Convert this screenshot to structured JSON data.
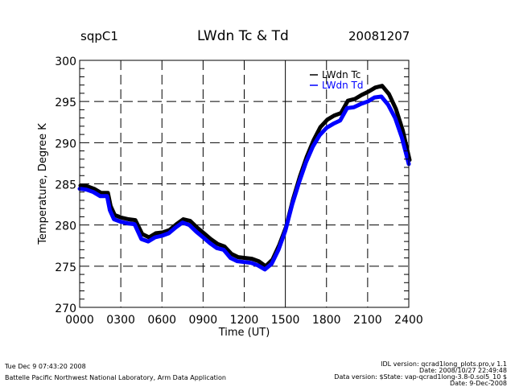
{
  "header": {
    "site": "sqpC1",
    "title": "LWdn Tc & Td",
    "date": "20081207"
  },
  "footer": {
    "left_line1": "Tue Dec  9 07:43:20 2008",
    "left_line2": "Battelle Pacific Northwest National Laboratory, Arm Data Application",
    "right_line1": "IDL version: qcrad1long_plots.pro,v 1.1",
    "right_line2": "Date: 2008/10/27 22:49:48",
    "right_line3": "Data version: $State: vap-qcrad1long-3.8-0.sol5_10 $",
    "right_line4": "Date: 9-Dec-2008"
  },
  "chart_data": {
    "type": "line",
    "title": "LWdn Tc & Td",
    "xlabel": "Time (UT)",
    "ylabel": "Temperature, Degree K",
    "xlim": [
      0,
      24
    ],
    "ylim": [
      270,
      300
    ],
    "xticks": [
      0,
      3,
      6,
      9,
      12,
      15,
      18,
      21,
      24
    ],
    "xtick_labels": [
      "0000",
      "0300",
      "0600",
      "0900",
      "1200",
      "1500",
      "1800",
      "2100",
      "2400"
    ],
    "yticks": [
      270,
      275,
      280,
      285,
      290,
      295,
      300
    ],
    "ytick_labels": [
      "270",
      "275",
      "280",
      "285",
      "290",
      "295",
      "300"
    ],
    "grid": true,
    "legend": "top-right",
    "x": [
      0,
      0.5,
      1,
      1.5,
      2,
      2.2,
      2.5,
      3,
      3.5,
      4,
      4.5,
      5,
      5.5,
      6,
      6.5,
      7,
      7.5,
      8,
      8.5,
      9,
      9.5,
      10,
      10.5,
      11,
      11.5,
      12,
      12.5,
      13,
      13.5,
      14,
      14.5,
      15,
      15.5,
      16,
      16.5,
      17,
      17.5,
      18,
      18.5,
      19,
      19.5,
      20,
      20.5,
      21,
      21.5,
      22,
      22.5,
      23,
      23.5,
      24
    ],
    "series": [
      {
        "name": "LWdn Tc",
        "color": "#000000",
        "values": [
          284.7,
          284.6,
          284.3,
          283.8,
          283.8,
          282.2,
          281.1,
          280.8,
          280.6,
          280.5,
          278.8,
          278.4,
          278.9,
          279.0,
          279.3,
          280.0,
          280.6,
          280.4,
          279.6,
          278.9,
          278.2,
          277.6,
          277.3,
          276.4,
          276.0,
          275.9,
          275.8,
          275.5,
          274.9,
          275.7,
          277.5,
          279.7,
          283.0,
          285.8,
          288.2,
          290.2,
          291.8,
          292.7,
          293.2,
          293.5,
          295.0,
          295.2,
          295.7,
          296.1,
          296.6,
          296.8,
          295.8,
          294.0,
          291.4,
          287.8
        ]
      },
      {
        "name": "LWdn Td",
        "color": "#0000ff",
        "values": [
          284.4,
          284.3,
          284.0,
          283.5,
          283.5,
          281.8,
          280.7,
          280.4,
          280.2,
          280.1,
          278.3,
          278.0,
          278.5,
          278.7,
          279.0,
          279.7,
          280.3,
          280.0,
          279.2,
          278.5,
          277.8,
          277.2,
          277.0,
          276.0,
          275.6,
          275.5,
          275.4,
          275.1,
          274.6,
          275.3,
          277.0,
          279.3,
          282.5,
          285.2,
          287.6,
          289.5,
          290.9,
          291.8,
          292.3,
          292.7,
          294.2,
          294.3,
          294.7,
          295.0,
          295.5,
          295.6,
          294.6,
          293.0,
          290.6,
          287.4
        ]
      }
    ]
  }
}
